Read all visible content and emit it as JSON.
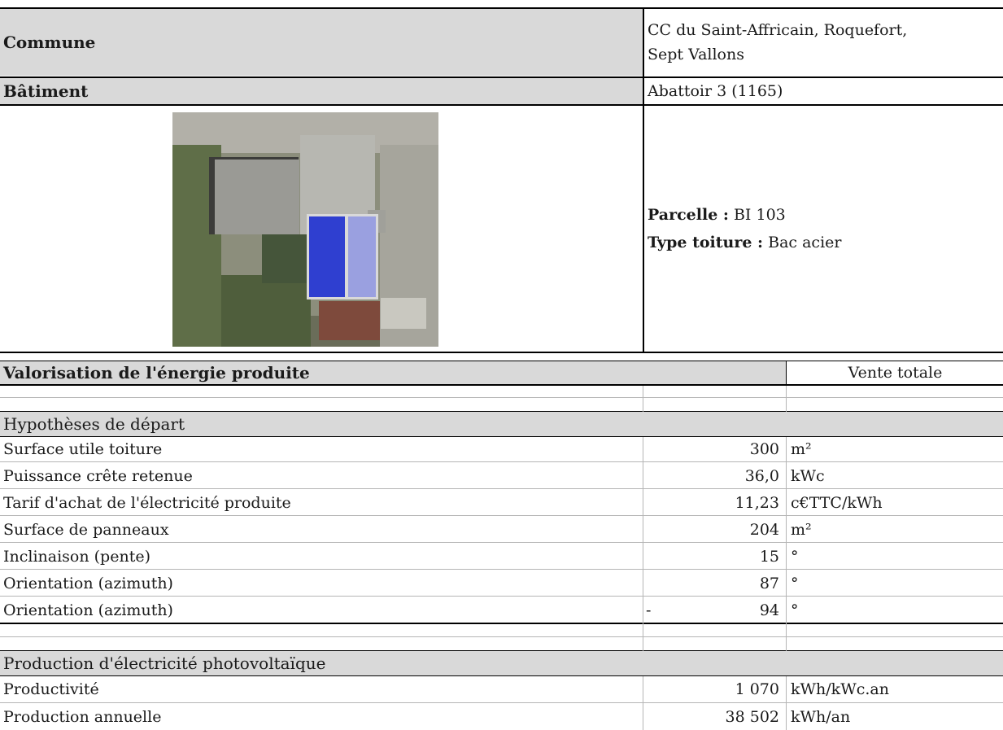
{
  "header": {
    "commune_label": "Commune",
    "commune_value_line1": "CC du Saint-Affricain, Roquefort,",
    "commune_value_line2": "Sept Vallons",
    "batiment_label": "Bâtiment",
    "batiment_value": "Abattoir 3 (1165)"
  },
  "parcel": {
    "parcelle_label": "Parcelle :",
    "parcelle_value": "BI 103",
    "toiture_label": "Type toiture :",
    "toiture_value": "Bac acier"
  },
  "valorisation": {
    "label": "Valorisation de l'énergie produite",
    "value": "Vente totale"
  },
  "hypotheses": {
    "title": "Hypothèses de départ",
    "rows": [
      {
        "label": "Surface utile toiture",
        "prefix": "",
        "value": "300",
        "unit": "m²"
      },
      {
        "label": "Puissance crête retenue",
        "prefix": "",
        "value": "36,0",
        "unit": "kWc"
      },
      {
        "label": "Tarif d'achat de l'électricité produite",
        "prefix": "",
        "value": "11,23",
        "unit": "c€TTC/kWh"
      },
      {
        "label": "Surface de panneaux",
        "prefix": "",
        "value": "204",
        "unit": "m²"
      },
      {
        "label": "Inclinaison (pente)",
        "prefix": "",
        "value": "15",
        "unit": "°"
      },
      {
        "label": "Orientation (azimuth)",
        "prefix": "",
        "value": "87",
        "unit": "°"
      },
      {
        "label": "Orientation (azimuth)",
        "prefix": "-",
        "value": "94",
        "unit": "°"
      }
    ]
  },
  "production": {
    "title": "Production d'électricité photovoltaïque",
    "rows": [
      {
        "label": "Productivité",
        "value": "1 070",
        "unit": "kWh/kWc.an"
      },
      {
        "label": "Production annuelle",
        "value": "38 502",
        "unit": "kWh/an"
      }
    ]
  }
}
